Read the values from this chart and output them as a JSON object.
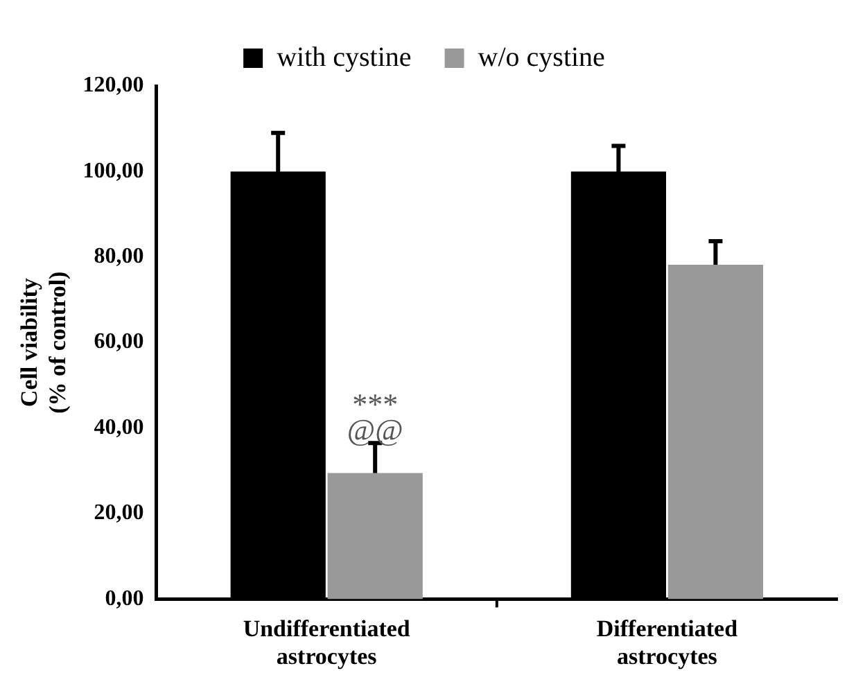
{
  "chart_data": {
    "type": "bar",
    "ylabel": "Cell viability (% of control)",
    "categories": [
      "Undifferentiated astrocytes",
      "Differentiated astrocytes"
    ],
    "series": [
      {
        "name": "with cystine",
        "color": "#000000",
        "values": [
          100,
          100
        ],
        "errors": [
          9,
          6
        ]
      },
      {
        "name": "w/o cystine",
        "color": "#999999",
        "values": [
          29.5,
          78.2
        ],
        "errors": [
          7,
          5.5
        ]
      }
    ],
    "ylim": [
      0,
      120
    ],
    "yticks": [
      {
        "value": 0,
        "label": "0,00"
      },
      {
        "value": 20,
        "label": "20,00"
      },
      {
        "value": 40,
        "label": "40,00"
      },
      {
        "value": 60,
        "label": "60,00"
      },
      {
        "value": 80,
        "label": "80,00"
      },
      {
        "value": 100,
        "label": "100,00"
      },
      {
        "value": 120,
        "label": "120,00"
      }
    ],
    "annotations": [
      {
        "text": "***",
        "x": "Undifferentiated astrocytes",
        "y": 45
      },
      {
        "text": "@@",
        "x": "Undifferentiated astrocytes",
        "y": 39
      }
    ],
    "legend": "top",
    "grid": false
  }
}
